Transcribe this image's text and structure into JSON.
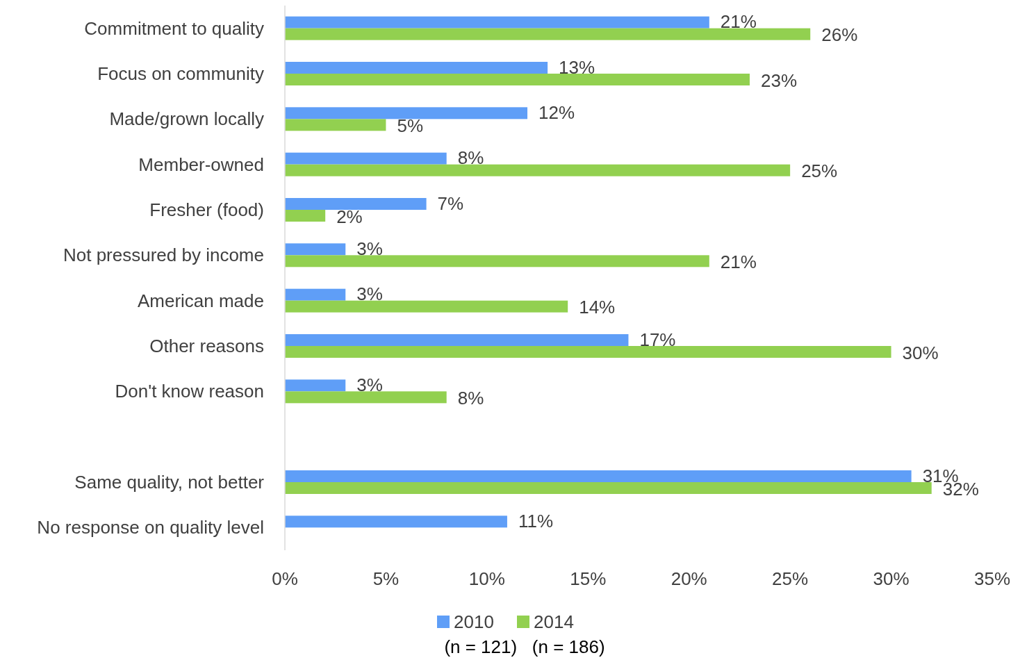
{
  "chart_data": {
    "type": "bar",
    "orientation": "horizontal",
    "categories": [
      "Commitment to quality",
      "Focus on community",
      "Made/grown locally",
      "Member-owned",
      "Fresher (food)",
      "Not pressured by income",
      "American made",
      "Other reasons",
      "Don't know reason",
      null,
      "Same quality, not better",
      "No response on quality level"
    ],
    "series": [
      {
        "name": "2010",
        "color": "#5f9ef7",
        "values": [
          21,
          13,
          12,
          8,
          7,
          3,
          3,
          17,
          3,
          null,
          31,
          11
        ],
        "value_labels": [
          "21%",
          "13%",
          "12%",
          "8%",
          "7%",
          "3%",
          "3%",
          "17%",
          "3%",
          null,
          "31%",
          "11%"
        ]
      },
      {
        "name": "2014",
        "color": "#92d050",
        "values": [
          26,
          23,
          5,
          25,
          2,
          21,
          14,
          30,
          8,
          null,
          32,
          null
        ],
        "value_labels": [
          "26%",
          "23%",
          "5%",
          "25%",
          "2%",
          "21%",
          "14%",
          "30%",
          "8%",
          null,
          "32%",
          null
        ]
      }
    ],
    "xlim": [
      0,
      35
    ],
    "xticks": [
      {
        "value": 0,
        "label": "0%"
      },
      {
        "value": 5,
        "label": "5%"
      },
      {
        "value": 10,
        "label": "10%"
      },
      {
        "value": 15,
        "label": "15%"
      },
      {
        "value": 20,
        "label": "20%"
      },
      {
        "value": 25,
        "label": "25%"
      },
      {
        "value": 30,
        "label": "30%"
      },
      {
        "value": 35,
        "label": "35%"
      }
    ],
    "legend": "bottom",
    "annotations": [
      "(n = 121)   (n = 186)"
    ]
  }
}
